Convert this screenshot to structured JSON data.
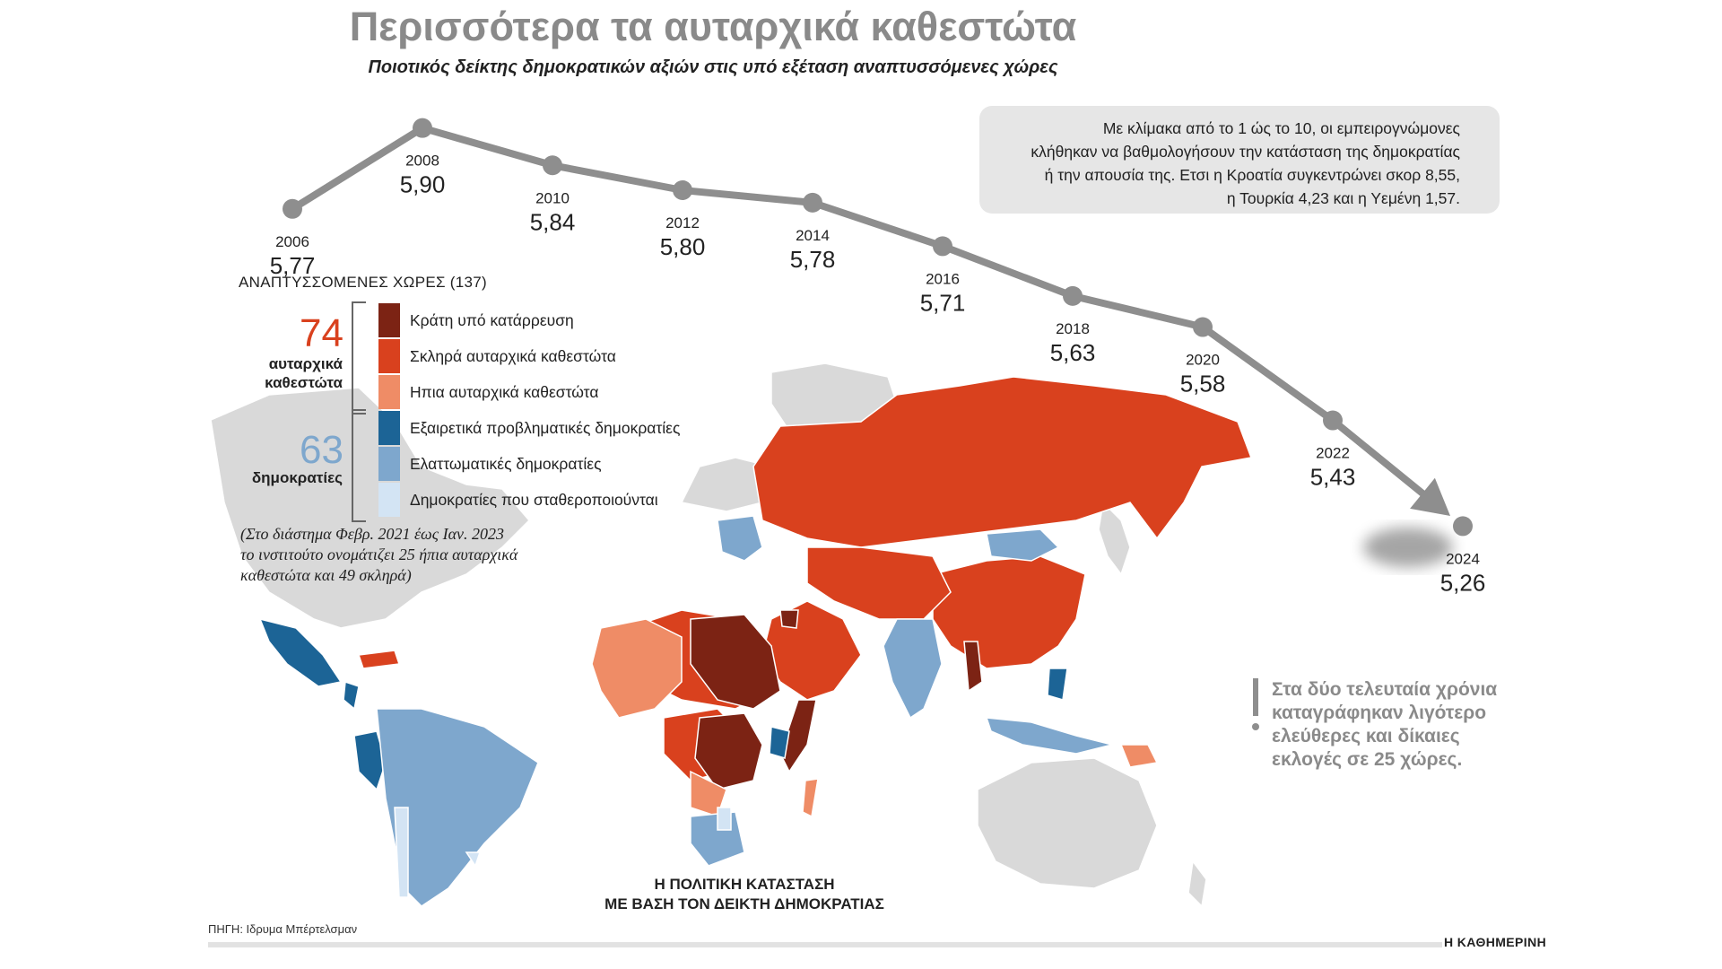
{
  "title": "Περισσότερα τα αυταρχικά καθεστώτα",
  "subtitle": "Ποιοτικός δείκτης δημοκρατικών αξιών στις υπό εξέταση αναπτυσσόμενες χώρες",
  "note_box": [
    "Με κλίμακα από το 1 ώς το 10, οι εμπειρογνώμονες",
    "κλήθηκαν να βαθμολογήσουν την κατάσταση της δημοκρατίας",
    "ή την απουσία της. Ετσι η Κροατία συγκεντρώνει σκορ 8,55,",
    "η Τουρκία 4,23 και η Υεμένη 1,57."
  ],
  "legend": {
    "header": "ΑΝΑΠΤΥΣΣΟΜΕΝΕΣ ΧΩΡΕΣ (137)",
    "autocracies": {
      "count": "74",
      "label_line1": "αυταρχικά",
      "label_line2": "καθεστώτα"
    },
    "democracies": {
      "count": "63",
      "label_line1": "δημοκρατίες"
    },
    "items": [
      {
        "label": "Κράτη υπό κατάρρευση",
        "color": "#7c2314"
      },
      {
        "label": "Σκληρά αυταρχικά καθεστώτα",
        "color": "#d9411e"
      },
      {
        "label": "Ηπια αυταρχικά καθεστώτα",
        "color": "#ef8c66"
      },
      {
        "label": "Εξαιρετικά προβληματικές δημοκρατίες",
        "color": "#1c6496"
      },
      {
        "label": "Ελαττωματικές δημοκρατίες",
        "color": "#7ea7cd"
      },
      {
        "label": "Δημοκρατίες που σταθεροποιούνται",
        "color": "#d3e4f4"
      }
    ]
  },
  "period_note": [
    "(Στο διάστημα Φεβρ. 2021 έως Ιαν. 2023",
    "το ινστιτούτο ονομάτιζει 25 ήπια αυταρχικά",
    "καθεστώτα και 49 σκληρά)"
  ],
  "warning": [
    "Στα δύο τελευταία χρόνια",
    "καταγράφηκαν λιγότερο",
    "ελεύθερες και δίκαιες",
    "εκλογές σε 25 χώρες."
  ],
  "map_caption": [
    "Η ΠΟΛΙΤΙΚΗ ΚΑΤΑΣΤΑΣΗ",
    "ΜΕ ΒΑΣΗ ΤΟΝ ΔΕΙΚΤΗ ΔΗΜΟΚΡΑΤΙΑΣ"
  ],
  "source": "ΠΗΓΗ: Ιδρυμα Μπέρτελσμαν",
  "brand": "Η ΚΑΘΗΜΕΡΙΝΗ",
  "colors": {
    "line": "#8e8e8e",
    "land": "#d9d9d9"
  },
  "chart_data": {
    "type": "line",
    "title": "Ποιοτικός δείκτης δημοκρατικών αξιών στις υπό εξέταση αναπτυσσόμενες χώρες",
    "categories": [
      "2006",
      "2008",
      "2010",
      "2012",
      "2014",
      "2016",
      "2018",
      "2020",
      "2022",
      "2024"
    ],
    "values": [
      5.77,
      5.9,
      5.84,
      5.8,
      5.78,
      5.71,
      5.63,
      5.58,
      5.43,
      5.26
    ],
    "value_labels": [
      "5,77",
      "5,90",
      "5,84",
      "5,80",
      "5,78",
      "5,71",
      "5,63",
      "5,58",
      "5,43",
      "5,26"
    ],
    "xlabel": "",
    "ylabel": "",
    "ylim": [
      5.2,
      5.95
    ]
  }
}
